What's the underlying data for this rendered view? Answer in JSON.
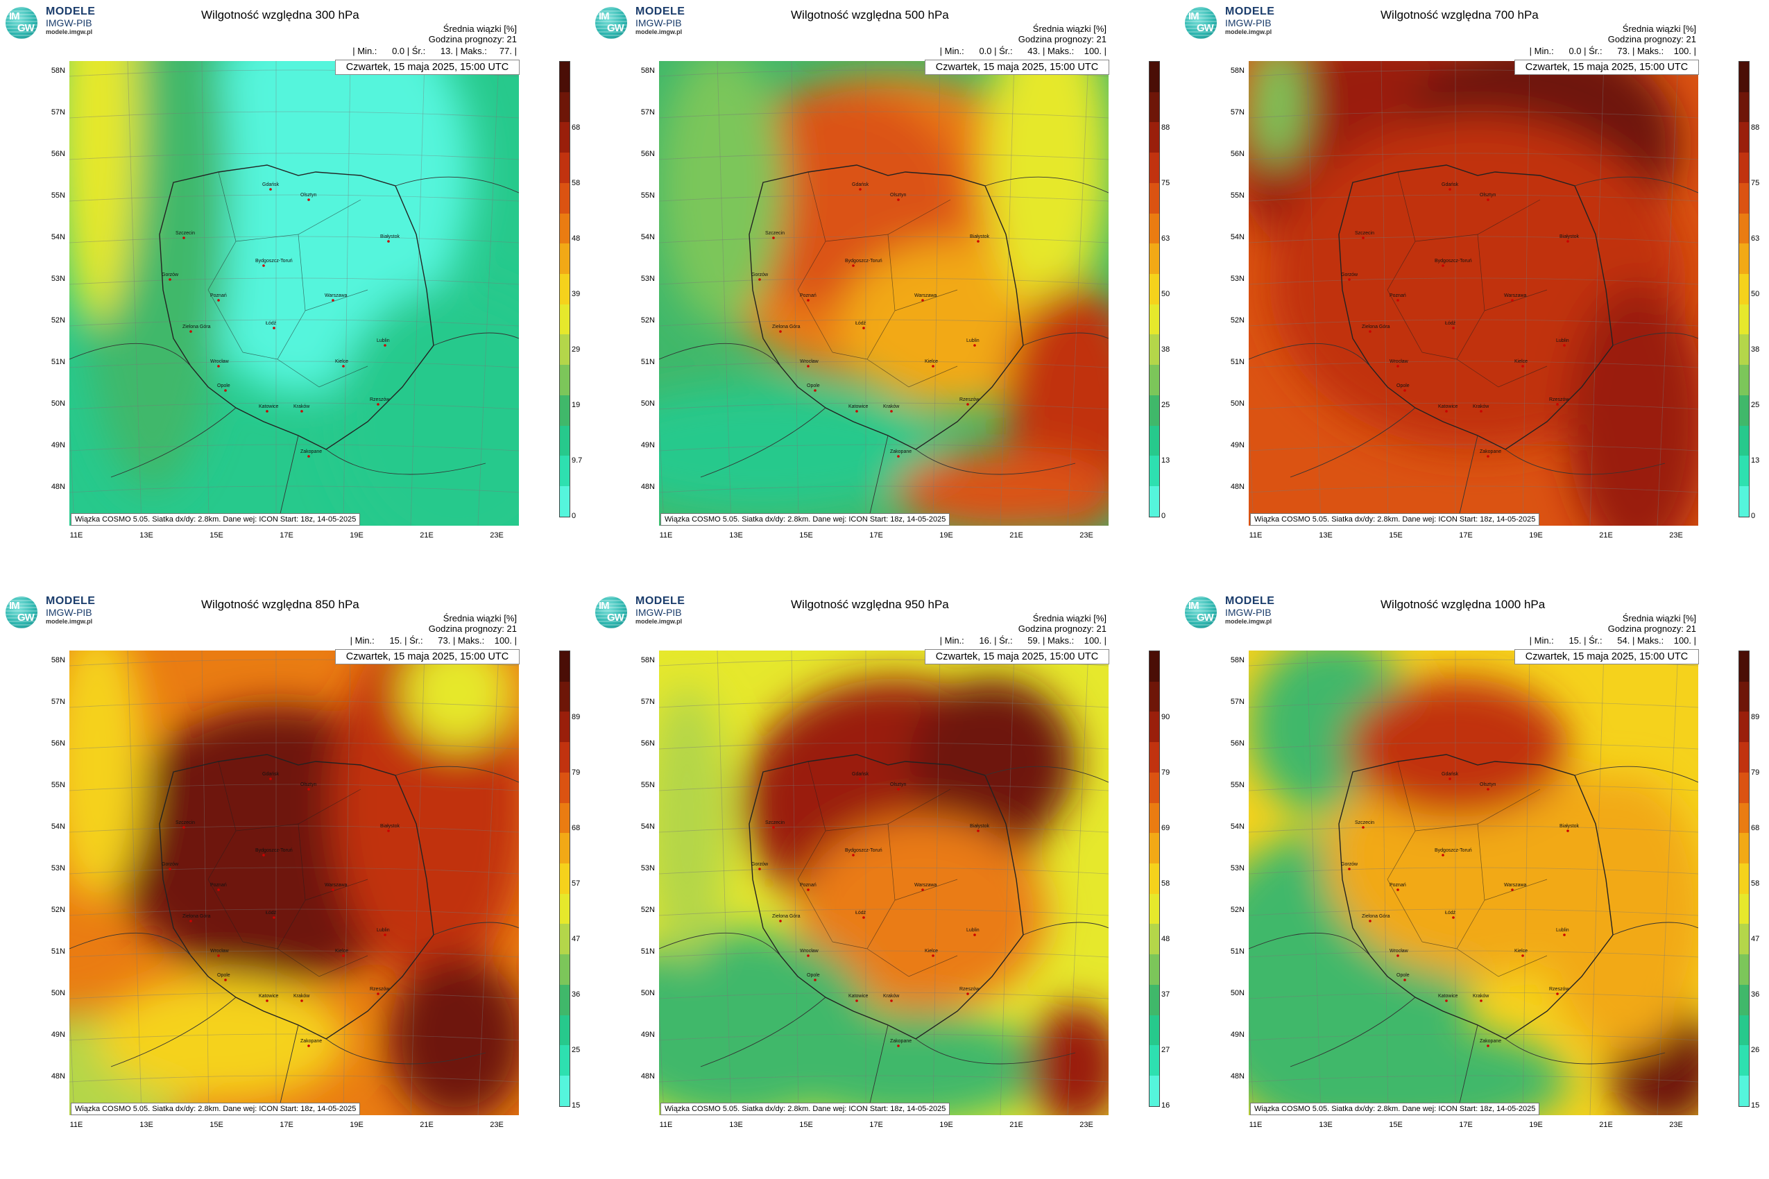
{
  "logo": {
    "im": "IM",
    "gw": "GW",
    "line1": "MODELE",
    "line2": "IMGW-PIB",
    "line3": "modele.imgw.pl"
  },
  "common": {
    "info_line1": "Średnia wiązki [%]",
    "info_line2": "Godzina prognozy: 21",
    "date": "Czwartek, 15 maja 2025, 15:00 UTC",
    "footer": "Wiązka COSMO 5.05. Siatka dx/dy: 2.8km. Dane wej: ICON Start: 18z, 14-05-2025",
    "lat_labels": [
      "58N",
      "57N",
      "56N",
      "55N",
      "54N",
      "53N",
      "52N",
      "51N",
      "50N",
      "49N",
      "48N"
    ],
    "lon_labels": [
      "11E",
      "13E",
      "15E",
      "17E",
      "19E",
      "21E",
      "23E"
    ]
  },
  "panels": [
    {
      "title": "Wilgotność względna 300 hPa",
      "stats": "| Min.:      0.0 | Śr.:      13. | Maks.:     77. |",
      "colorbar": [
        "0",
        "9.7",
        "19",
        "29",
        "39",
        "48",
        "58",
        "68"
      ],
      "scheme": "dry"
    },
    {
      "title": "Wilgotność względna 500 hPa",
      "stats": "| Min.:      0.0 | Śr.:      43. | Maks.:    100. |",
      "colorbar": [
        "0",
        "13",
        "25",
        "38",
        "50",
        "63",
        "75",
        "88"
      ],
      "scheme": "mid"
    },
    {
      "title": "Wilgotność względna 700 hPa",
      "stats": "| Min.:      0.0 | Śr.:      73. | Maks.:    100. |",
      "colorbar": [
        "0",
        "13",
        "25",
        "38",
        "50",
        "63",
        "75",
        "88"
      ],
      "scheme": "wet"
    },
    {
      "title": "Wilgotność względna 850 hPa",
      "stats": "| Min.:      15. | Śr.:      73. | Maks.:    100. |",
      "colorbar": [
        "15",
        "25",
        "36",
        "47",
        "57",
        "68",
        "79",
        "89"
      ],
      "scheme": "wet2"
    },
    {
      "title": "Wilgotność względna 950 hPa",
      "stats": "| Min.:      16. | Śr.:      59. | Maks.:    100. |",
      "colorbar": [
        "16",
        "27",
        "37",
        "48",
        "58",
        "69",
        "79",
        "90"
      ],
      "scheme": "mid2"
    },
    {
      "title": "Wilgotność względna 1000 hPa",
      "stats": "| Min.:      15. | Śr.:      54. | Maks.:    100. |",
      "colorbar": [
        "15",
        "26",
        "36",
        "47",
        "58",
        "68",
        "79",
        "89"
      ],
      "scheme": "mid3"
    }
  ],
  "cities": [
    "Gdańsk",
    "Olsztyn",
    "Szczecin",
    "Białystok",
    "Bydgoszcz-Toruń",
    "Gorzów",
    "Poznań",
    "Warszawa",
    "Zielona Góra",
    "Łódź",
    "Lublin",
    "Wrocław",
    "Kielce",
    "Opole",
    "Katowice",
    "Kraków",
    "Rzeszów",
    "Zakopane"
  ],
  "colors": {
    "scale": [
      "#55f5dc",
      "#2ee0b0",
      "#27c98c",
      "#40b86a",
      "#7cc65a",
      "#b4d64a",
      "#e6e82c",
      "#f5d21c",
      "#f2a916",
      "#ea7c12",
      "#db5312",
      "#c1330f",
      "#9a1f0b",
      "#6e1608",
      "#4a0e06"
    ]
  }
}
